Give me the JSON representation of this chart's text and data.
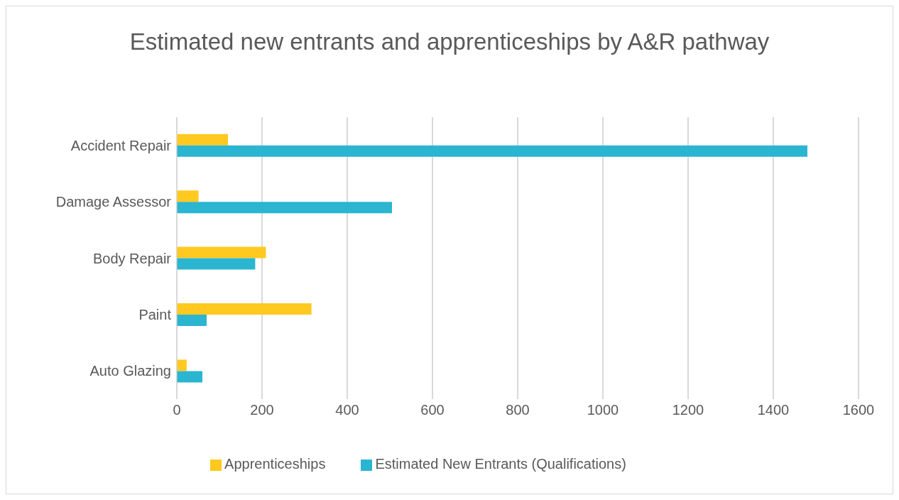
{
  "chart_data": {
    "type": "bar",
    "orientation": "horizontal",
    "title": "Estimated new entrants and apprenticeships by A&R pathway",
    "categories": [
      "Accident Repair",
      "Damage Assessor",
      "Body Repair",
      "Paint",
      "Auto Glazing"
    ],
    "series": [
      {
        "name": "Apprenticeships",
        "color": "#ffc91f",
        "values": [
          120,
          51,
          209,
          316,
          23
        ]
      },
      {
        "name": "Estimated New Entrants (Qualifications)",
        "color": "#2bb5d1",
        "values": [
          1480,
          505,
          184,
          70,
          60
        ]
      }
    ],
    "xlim": [
      0,
      1600
    ],
    "xticks": [
      0,
      200,
      400,
      600,
      800,
      1000,
      1200,
      1400,
      1600
    ],
    "grid": "x",
    "legend": "bottom"
  }
}
